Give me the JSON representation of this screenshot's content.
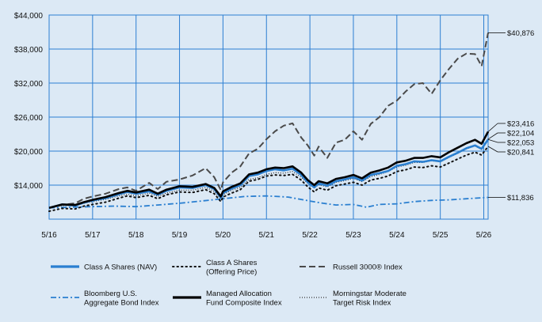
{
  "chart_data": {
    "type": "line",
    "x_ticks": [
      "5/16",
      "5/17",
      "5/18",
      "5/19",
      "5/20",
      "5/21",
      "5/22",
      "5/23",
      "5/24",
      "5/25",
      "5/26"
    ],
    "y_ticks": [
      "$14,000",
      "$20,000",
      "$26,000",
      "$32,000",
      "$38,000",
      "$44,000"
    ],
    "y_tick_values": [
      14000,
      20000,
      26000,
      32000,
      38000,
      44000
    ],
    "ylim": [
      8000,
      44000
    ],
    "xlim": [
      0,
      10.1
    ],
    "grid": true,
    "legend_position": "bottom",
    "series": [
      {
        "name": "Class A Shares (NAV)",
        "color": "#2a7fd0",
        "style": "solid-thick",
        "end_label": "$22,053",
        "values": [
          [
            0,
            10000
          ],
          [
            0.3,
            10600
          ],
          [
            0.6,
            10400
          ],
          [
            0.8,
            10900
          ],
          [
            1,
            11300
          ],
          [
            1.3,
            11700
          ],
          [
            1.6,
            12400
          ],
          [
            1.8,
            12800
          ],
          [
            2,
            12500
          ],
          [
            2.3,
            12900
          ],
          [
            2.5,
            12300
          ],
          [
            2.7,
            13000
          ],
          [
            3,
            13600
          ],
          [
            3.3,
            13500
          ],
          [
            3.6,
            14000
          ],
          [
            3.8,
            13300
          ],
          [
            3.95,
            11800
          ],
          [
            4,
            12600
          ],
          [
            4.2,
            13400
          ],
          [
            4.4,
            14000
          ],
          [
            4.6,
            15600
          ],
          [
            4.8,
            15900
          ],
          [
            5,
            16500
          ],
          [
            5.2,
            16800
          ],
          [
            5.4,
            16600
          ],
          [
            5.6,
            16900
          ],
          [
            5.8,
            15800
          ],
          [
            5.95,
            14500
          ],
          [
            6.1,
            13600
          ],
          [
            6.2,
            14300
          ],
          [
            6.4,
            13900
          ],
          [
            6.6,
            14700
          ],
          [
            6.8,
            15000
          ],
          [
            7,
            15400
          ],
          [
            7.2,
            14800
          ],
          [
            7.4,
            15800
          ],
          [
            7.6,
            16100
          ],
          [
            7.8,
            16500
          ],
          [
            8,
            17400
          ],
          [
            8.2,
            17700
          ],
          [
            8.4,
            18200
          ],
          [
            8.6,
            18100
          ],
          [
            8.8,
            18400
          ],
          [
            9,
            18200
          ],
          [
            9.2,
            19000
          ],
          [
            9.4,
            19700
          ],
          [
            9.6,
            20500
          ],
          [
            9.8,
            21000
          ],
          [
            9.95,
            20400
          ],
          [
            10.1,
            22053
          ]
        ]
      },
      {
        "name": "Class A Shares (Offering Price)",
        "color": "#111111",
        "style": "dotted",
        "end_label": "$20,841",
        "values": [
          [
            0,
            9400
          ],
          [
            0.3,
            9900
          ],
          [
            0.6,
            9800
          ],
          [
            0.8,
            10300
          ],
          [
            1,
            10600
          ],
          [
            1.3,
            11000
          ],
          [
            1.6,
            11700
          ],
          [
            1.8,
            12100
          ],
          [
            2,
            11800
          ],
          [
            2.3,
            12200
          ],
          [
            2.5,
            11600
          ],
          [
            2.7,
            12300
          ],
          [
            3,
            12800
          ],
          [
            3.3,
            12700
          ],
          [
            3.6,
            13200
          ],
          [
            3.8,
            12500
          ],
          [
            3.95,
            11100
          ],
          [
            4,
            11900
          ],
          [
            4.2,
            12600
          ],
          [
            4.4,
            13200
          ],
          [
            4.6,
            14700
          ],
          [
            4.8,
            15000
          ],
          [
            5,
            15600
          ],
          [
            5.2,
            15800
          ],
          [
            5.4,
            15700
          ],
          [
            5.6,
            15900
          ],
          [
            5.8,
            14900
          ],
          [
            5.95,
            13700
          ],
          [
            6.1,
            12800
          ],
          [
            6.2,
            13500
          ],
          [
            6.4,
            13100
          ],
          [
            6.6,
            13900
          ],
          [
            6.8,
            14200
          ],
          [
            7,
            14500
          ],
          [
            7.2,
            14000
          ],
          [
            7.4,
            14900
          ],
          [
            7.6,
            15200
          ],
          [
            7.8,
            15600
          ],
          [
            8,
            16400
          ],
          [
            8.2,
            16700
          ],
          [
            8.4,
            17200
          ],
          [
            8.6,
            17100
          ],
          [
            8.8,
            17400
          ],
          [
            9,
            17200
          ],
          [
            9.2,
            17900
          ],
          [
            9.4,
            18600
          ],
          [
            9.6,
            19300
          ],
          [
            9.8,
            19800
          ],
          [
            9.95,
            19300
          ],
          [
            10.1,
            20841
          ]
        ]
      },
      {
        "name": "Russell 3000® Index",
        "color": "#4a4a4a",
        "style": "dashed",
        "end_label": "$40,876",
        "values": [
          [
            0,
            10000
          ],
          [
            0.3,
            10500
          ],
          [
            0.6,
            10800
          ],
          [
            0.8,
            11600
          ],
          [
            1,
            12000
          ],
          [
            1.3,
            12500
          ],
          [
            1.6,
            13300
          ],
          [
            1.8,
            13600
          ],
          [
            2,
            13000
          ],
          [
            2.3,
            14400
          ],
          [
            2.5,
            13300
          ],
          [
            2.7,
            14600
          ],
          [
            3,
            15000
          ],
          [
            3.3,
            15700
          ],
          [
            3.6,
            17000
          ],
          [
            3.8,
            15400
          ],
          [
            3.95,
            13100
          ],
          [
            4,
            14500
          ],
          [
            4.2,
            16200
          ],
          [
            4.4,
            17300
          ],
          [
            4.6,
            19600
          ],
          [
            4.8,
            20400
          ],
          [
            5,
            22100
          ],
          [
            5.2,
            23500
          ],
          [
            5.4,
            24500
          ],
          [
            5.6,
            24900
          ],
          [
            5.8,
            22400
          ],
          [
            5.95,
            21000
          ],
          [
            6.1,
            19200
          ],
          [
            6.2,
            20800
          ],
          [
            6.4,
            18800
          ],
          [
            6.6,
            21500
          ],
          [
            6.8,
            22000
          ],
          [
            7,
            23500
          ],
          [
            7.2,
            22000
          ],
          [
            7.4,
            24800
          ],
          [
            7.6,
            26000
          ],
          [
            7.8,
            28000
          ],
          [
            8,
            28900
          ],
          [
            8.2,
            30500
          ],
          [
            8.4,
            31800
          ],
          [
            8.6,
            32000
          ],
          [
            8.8,
            30100
          ],
          [
            9,
            32500
          ],
          [
            9.2,
            34500
          ],
          [
            9.4,
            36300
          ],
          [
            9.6,
            37200
          ],
          [
            9.8,
            37100
          ],
          [
            9.95,
            35000
          ],
          [
            10.1,
            40876
          ]
        ]
      },
      {
        "name": "Bloomberg U.S. Aggregate Bond Index",
        "color": "#2a7fd0",
        "style": "dashdot",
        "end_label": "$11,836",
        "values": [
          [
            0,
            10000
          ],
          [
            0.5,
            10100
          ],
          [
            1,
            10200
          ],
          [
            1.5,
            10300
          ],
          [
            2,
            10200
          ],
          [
            2.5,
            10500
          ],
          [
            3,
            10800
          ],
          [
            3.5,
            11200
          ],
          [
            4,
            11600
          ],
          [
            4.5,
            12000
          ],
          [
            5,
            12100
          ],
          [
            5.5,
            11900
          ],
          [
            6,
            11200
          ],
          [
            6.3,
            10800
          ],
          [
            6.6,
            10500
          ],
          [
            7,
            10600
          ],
          [
            7.3,
            10100
          ],
          [
            7.6,
            10600
          ],
          [
            8,
            10700
          ],
          [
            8.4,
            11100
          ],
          [
            8.8,
            11300
          ],
          [
            9.2,
            11400
          ],
          [
            9.6,
            11600
          ],
          [
            10.1,
            11836
          ]
        ]
      },
      {
        "name": "Managed Allocation Fund Composite Index",
        "color": "#000000",
        "style": "solid-thick",
        "end_label": "$23,416",
        "values": [
          [
            0,
            10000
          ],
          [
            0.3,
            10600
          ],
          [
            0.6,
            10500
          ],
          [
            0.8,
            11000
          ],
          [
            1,
            11400
          ],
          [
            1.3,
            11900
          ],
          [
            1.6,
            12600
          ],
          [
            1.8,
            13000
          ],
          [
            2,
            12700
          ],
          [
            2.3,
            13200
          ],
          [
            2.5,
            12500
          ],
          [
            2.7,
            13200
          ],
          [
            3,
            13800
          ],
          [
            3.3,
            13700
          ],
          [
            3.6,
            14200
          ],
          [
            3.8,
            13500
          ],
          [
            3.95,
            12000
          ],
          [
            4,
            12900
          ],
          [
            4.2,
            13700
          ],
          [
            4.4,
            14300
          ],
          [
            4.6,
            15900
          ],
          [
            4.8,
            16200
          ],
          [
            5,
            16800
          ],
          [
            5.2,
            17100
          ],
          [
            5.4,
            17000
          ],
          [
            5.6,
            17300
          ],
          [
            5.8,
            16200
          ],
          [
            5.95,
            14900
          ],
          [
            6.1,
            14000
          ],
          [
            6.2,
            14700
          ],
          [
            6.4,
            14300
          ],
          [
            6.6,
            15100
          ],
          [
            6.8,
            15400
          ],
          [
            7,
            15800
          ],
          [
            7.2,
            15200
          ],
          [
            7.4,
            16200
          ],
          [
            7.6,
            16600
          ],
          [
            7.8,
            17100
          ],
          [
            8,
            18000
          ],
          [
            8.2,
            18300
          ],
          [
            8.4,
            18800
          ],
          [
            8.6,
            18800
          ],
          [
            8.8,
            19100
          ],
          [
            9,
            18900
          ],
          [
            9.2,
            19800
          ],
          [
            9.4,
            20600
          ],
          [
            9.6,
            21400
          ],
          [
            9.8,
            22000
          ],
          [
            9.95,
            21300
          ],
          [
            10.1,
            23416
          ]
        ]
      },
      {
        "name": "Morningstar Moderate Target Risk Index",
        "color": "#333333",
        "style": "fine-dotted",
        "end_label": "$22,104",
        "values": [
          [
            0,
            10000
          ],
          [
            0.3,
            10400
          ],
          [
            0.6,
            10400
          ],
          [
            0.8,
            10800
          ],
          [
            1,
            11100
          ],
          [
            1.3,
            11500
          ],
          [
            1.6,
            12100
          ],
          [
            1.8,
            12400
          ],
          [
            2,
            12100
          ],
          [
            2.3,
            12600
          ],
          [
            2.5,
            12000
          ],
          [
            2.7,
            12600
          ],
          [
            3,
            13100
          ],
          [
            3.3,
            13100
          ],
          [
            3.6,
            13600
          ],
          [
            3.8,
            12900
          ],
          [
            3.95,
            11600
          ],
          [
            4,
            12300
          ],
          [
            4.2,
            13100
          ],
          [
            4.4,
            13600
          ],
          [
            4.6,
            15000
          ],
          [
            4.8,
            15300
          ],
          [
            5,
            15900
          ],
          [
            5.2,
            16200
          ],
          [
            5.4,
            16100
          ],
          [
            5.6,
            16400
          ],
          [
            5.8,
            15400
          ],
          [
            5.95,
            14300
          ],
          [
            6.1,
            13500
          ],
          [
            6.2,
            14100
          ],
          [
            6.4,
            13700
          ],
          [
            6.6,
            14500
          ],
          [
            6.8,
            14800
          ],
          [
            7,
            15200
          ],
          [
            7.2,
            14600
          ],
          [
            7.4,
            15500
          ],
          [
            7.6,
            15900
          ],
          [
            7.8,
            16400
          ],
          [
            8,
            17200
          ],
          [
            8.2,
            17500
          ],
          [
            8.4,
            18000
          ],
          [
            8.6,
            18000
          ],
          [
            8.8,
            18300
          ],
          [
            9,
            18100
          ],
          [
            9.2,
            18900
          ],
          [
            9.4,
            19600
          ],
          [
            9.6,
            20400
          ],
          [
            9.8,
            20900
          ],
          [
            9.95,
            20300
          ],
          [
            10.1,
            22104
          ]
        ]
      }
    ],
    "legend": [
      {
        "lines": [
          "Class A Shares (NAV)"
        ],
        "series": 0
      },
      {
        "lines": [
          "Class A Shares",
          "(Offering Price)"
        ],
        "series": 1
      },
      {
        "lines": [
          "Russell 3000® Index"
        ],
        "series": 2
      },
      {
        "lines": [
          "Bloomberg U.S.",
          "Aggregate Bond Index"
        ],
        "series": 3
      },
      {
        "lines": [
          "Managed Allocation",
          "Fund Composite Index"
        ],
        "series": 4
      },
      {
        "lines": [
          "Morningstar Moderate",
          "Target Risk Index"
        ],
        "series": 5
      }
    ],
    "end_label_order": [
      "$40,876",
      "$23,416",
      "$22,104",
      "$22,053",
      "$20,841",
      "$11,836"
    ],
    "end_label_values": [
      40876,
      23416,
      22104,
      22053,
      20841,
      11836
    ]
  }
}
